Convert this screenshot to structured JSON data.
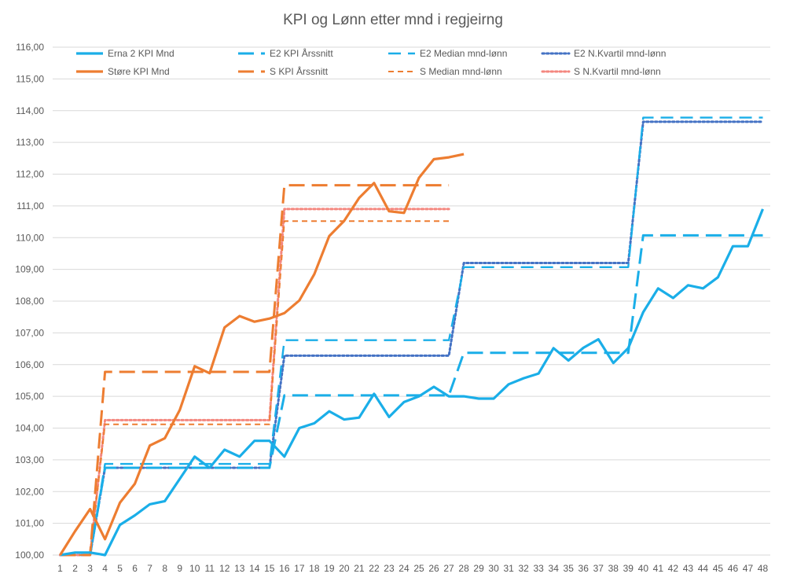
{
  "chart_data": {
    "type": "line",
    "title": "KPI og Lønn etter mnd i regjeirng",
    "xlabel": "",
    "ylabel": "",
    "x": [
      1,
      2,
      3,
      4,
      5,
      6,
      7,
      8,
      9,
      10,
      11,
      12,
      13,
      14,
      15,
      16,
      17,
      18,
      19,
      20,
      21,
      22,
      23,
      24,
      25,
      26,
      27,
      28,
      29,
      30,
      31,
      32,
      33,
      34,
      35,
      36,
      37,
      38,
      39,
      40,
      41,
      42,
      43,
      44,
      45,
      46,
      47,
      48
    ],
    "ylim": [
      100,
      116
    ],
    "yticks": [
      "100,00",
      "101,00",
      "102,00",
      "103,00",
      "104,00",
      "105,00",
      "106,00",
      "107,00",
      "108,00",
      "109,00",
      "110,00",
      "111,00",
      "112,00",
      "113,00",
      "114,00",
      "115,00",
      "116,00"
    ],
    "grid": true,
    "legend_position": "top",
    "series": [
      {
        "name": "Erna 2 KPI Mnd",
        "color": "#1aaee8",
        "dash": "solid",
        "values": [
          100.0,
          100.08,
          100.08,
          100.0,
          100.95,
          101.25,
          101.6,
          101.7,
          102.4,
          103.1,
          102.75,
          103.32,
          103.1,
          103.6,
          103.6,
          103.1,
          104.0,
          104.15,
          104.53,
          104.27,
          104.33,
          105.08,
          104.35,
          104.82,
          105.0,
          105.3,
          105.0,
          105.0,
          104.93,
          104.93,
          105.38,
          105.57,
          105.72,
          106.52,
          106.13,
          106.53,
          106.8,
          106.05,
          106.52,
          107.65,
          108.4,
          108.1,
          108.5,
          108.4,
          108.75,
          109.73,
          109.73,
          110.9
        ]
      },
      {
        "name": "Støre KPI Mnd",
        "color": "#ed7d31",
        "dash": "solid",
        "values": [
          100.0,
          100.75,
          101.45,
          100.5,
          101.65,
          102.25,
          103.45,
          103.68,
          104.57,
          105.95,
          105.73,
          107.17,
          107.53,
          107.35,
          107.45,
          107.62,
          108.02,
          108.85,
          110.05,
          110.53,
          111.25,
          111.72,
          110.83,
          110.78,
          111.88,
          112.47,
          112.53,
          112.63,
          null,
          null,
          null,
          null,
          null,
          null,
          null,
          null,
          null,
          null,
          null,
          null,
          null,
          null,
          null,
          null,
          null,
          null,
          null,
          null
        ]
      },
      {
        "name": "E2 KPI Årssnitt",
        "color": "#1aaee8",
        "dash": "longdash",
        "values": [
          100.0,
          100.0,
          100.0,
          102.75,
          102.75,
          102.75,
          102.75,
          102.75,
          102.75,
          102.75,
          102.75,
          102.75,
          102.75,
          102.75,
          102.75,
          105.03,
          105.03,
          105.03,
          105.03,
          105.03,
          105.03,
          105.03,
          105.03,
          105.03,
          105.03,
          105.03,
          105.03,
          106.37,
          106.37,
          106.37,
          106.37,
          106.37,
          106.37,
          106.37,
          106.37,
          106.37,
          106.37,
          106.37,
          106.37,
          110.07,
          110.07,
          110.07,
          110.07,
          110.07,
          110.07,
          110.07,
          110.07,
          110.07
        ]
      },
      {
        "name": "S KPI Årssnitt",
        "color": "#ed7d31",
        "dash": "longdash",
        "values": [
          100.0,
          100.0,
          100.0,
          105.77,
          105.77,
          105.77,
          105.77,
          105.77,
          105.77,
          105.77,
          105.77,
          105.77,
          105.77,
          105.77,
          105.77,
          111.65,
          111.65,
          111.65,
          111.65,
          111.65,
          111.65,
          111.65,
          111.65,
          111.65,
          111.65,
          111.65,
          111.65,
          null,
          null,
          null,
          null,
          null,
          null,
          null,
          null,
          null,
          null,
          null,
          null,
          null,
          null,
          null,
          null,
          null,
          null,
          null,
          null,
          null
        ]
      },
      {
        "name": "E2 Median mnd-lønn",
        "color": "#1aaee8",
        "dash": "dash",
        "values": [
          100.0,
          100.0,
          100.0,
          102.87,
          102.87,
          102.87,
          102.87,
          102.87,
          102.87,
          102.87,
          102.87,
          102.87,
          102.87,
          102.87,
          102.87,
          106.77,
          106.77,
          106.77,
          106.77,
          106.77,
          106.77,
          106.77,
          106.77,
          106.77,
          106.77,
          106.77,
          106.77,
          109.07,
          109.07,
          109.07,
          109.07,
          109.07,
          109.07,
          109.07,
          109.07,
          109.07,
          109.07,
          109.07,
          109.07,
          113.78,
          113.78,
          113.78,
          113.78,
          113.78,
          113.78,
          113.78,
          113.78,
          113.78
        ]
      },
      {
        "name": "S Median mnd-lønn",
        "color": "#ed7d31",
        "dash": "shortdash",
        "values": [
          100.0,
          100.0,
          100.0,
          104.12,
          104.12,
          104.12,
          104.12,
          104.12,
          104.12,
          104.12,
          104.12,
          104.12,
          104.12,
          104.12,
          104.12,
          110.52,
          110.52,
          110.52,
          110.52,
          110.52,
          110.52,
          110.52,
          110.52,
          110.52,
          110.52,
          110.52,
          110.52,
          null,
          null,
          null,
          null,
          null,
          null,
          null,
          null,
          null,
          null,
          null,
          null,
          null,
          null,
          null,
          null,
          null,
          null,
          null,
          null,
          null
        ]
      },
      {
        "name": "E2 N.Kvartil mnd-lønn",
        "color": "#4472c4",
        "dash": "dot",
        "values": [
          100.0,
          100.0,
          100.0,
          102.75,
          102.75,
          102.75,
          102.75,
          102.75,
          102.75,
          102.75,
          102.75,
          102.75,
          102.75,
          102.75,
          102.75,
          106.28,
          106.28,
          106.28,
          106.28,
          106.28,
          106.28,
          106.28,
          106.28,
          106.28,
          106.28,
          106.28,
          106.28,
          109.2,
          109.2,
          109.2,
          109.2,
          109.2,
          109.2,
          109.2,
          109.2,
          109.2,
          109.2,
          109.2,
          109.2,
          113.65,
          113.65,
          113.65,
          113.65,
          113.65,
          113.65,
          113.65,
          113.65,
          113.65
        ]
      },
      {
        "name": "S N.Kvartil mnd-lønn",
        "color": "#f4877f",
        "dash": "dot",
        "values": [
          100.0,
          100.0,
          100.0,
          104.25,
          104.25,
          104.25,
          104.25,
          104.25,
          104.25,
          104.25,
          104.25,
          104.25,
          104.25,
          104.25,
          104.25,
          110.9,
          110.9,
          110.9,
          110.9,
          110.9,
          110.9,
          110.9,
          110.9,
          110.9,
          110.9,
          110.9,
          110.9,
          null,
          null,
          null,
          null,
          null,
          null,
          null,
          null,
          null,
          null,
          null,
          null,
          null,
          null,
          null,
          null,
          null,
          null,
          null,
          null,
          null
        ]
      }
    ],
    "legend_order": [
      [
        "Erna 2 KPI Mnd",
        "E2 KPI Årssnitt",
        "E2 Median mnd-lønn",
        "E2 N.Kvartil mnd-lønn"
      ],
      [
        "Støre KPI Mnd",
        "S KPI Årssnitt",
        "S Median mnd-lønn",
        "S N.Kvartil mnd-lønn"
      ]
    ]
  }
}
